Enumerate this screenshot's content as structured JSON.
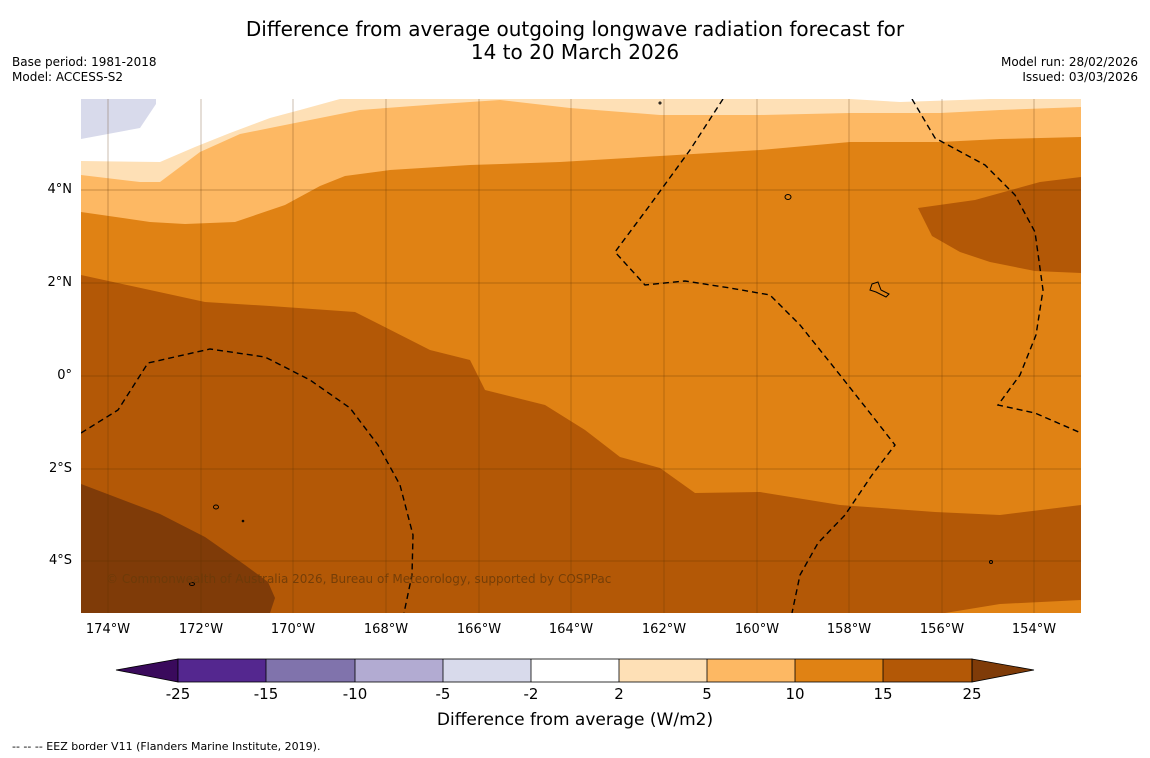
{
  "header": {
    "title_line1": "Difference from average outgoing longwave radiation forecast for",
    "title_line2": "14 to 20 March 2026",
    "base_period": "Base period: 1981-2018",
    "model": "Model: ACCESS-S2",
    "model_run": "Model run: 28/02/2026",
    "issued": "Issued: 03/03/2026"
  },
  "map": {
    "lat_labels": [
      "4°N",
      "2°N",
      "0°",
      "2°S",
      "4°S"
    ],
    "lon_labels": [
      "174°W",
      "172°W",
      "170°W",
      "168°W",
      "166°W",
      "164°W",
      "162°W",
      "160°W",
      "158°W",
      "156°W",
      "154°W"
    ],
    "copyright": "© Commonwealth of Australia 2026, Bureau of Meteorology, supported by COSPPac"
  },
  "colorbar": {
    "ticks": [
      "-25",
      "-15",
      "-10",
      "-5",
      "-2",
      "2",
      "5",
      "10",
      "15",
      "25"
    ],
    "label": "Difference from average (W/m2)",
    "colors": {
      "lt_neg25": "#3a0a5c",
      "neg25_neg15": "#54278f",
      "neg15_neg10": "#8073ac",
      "neg10_neg5": "#b2abd2",
      "neg5_neg2": "#d8daeb",
      "neg2_2": "#ffffff",
      "2_5": "#fee0b6",
      "5_10": "#fdb863",
      "10_15": "#e08214",
      "15_25": "#b35806",
      "gt_25": "#7f3b08"
    }
  },
  "footer": {
    "eez_note": "--  --  -- EEZ border V11 (Flanders Marine Institute, 2019)."
  }
}
